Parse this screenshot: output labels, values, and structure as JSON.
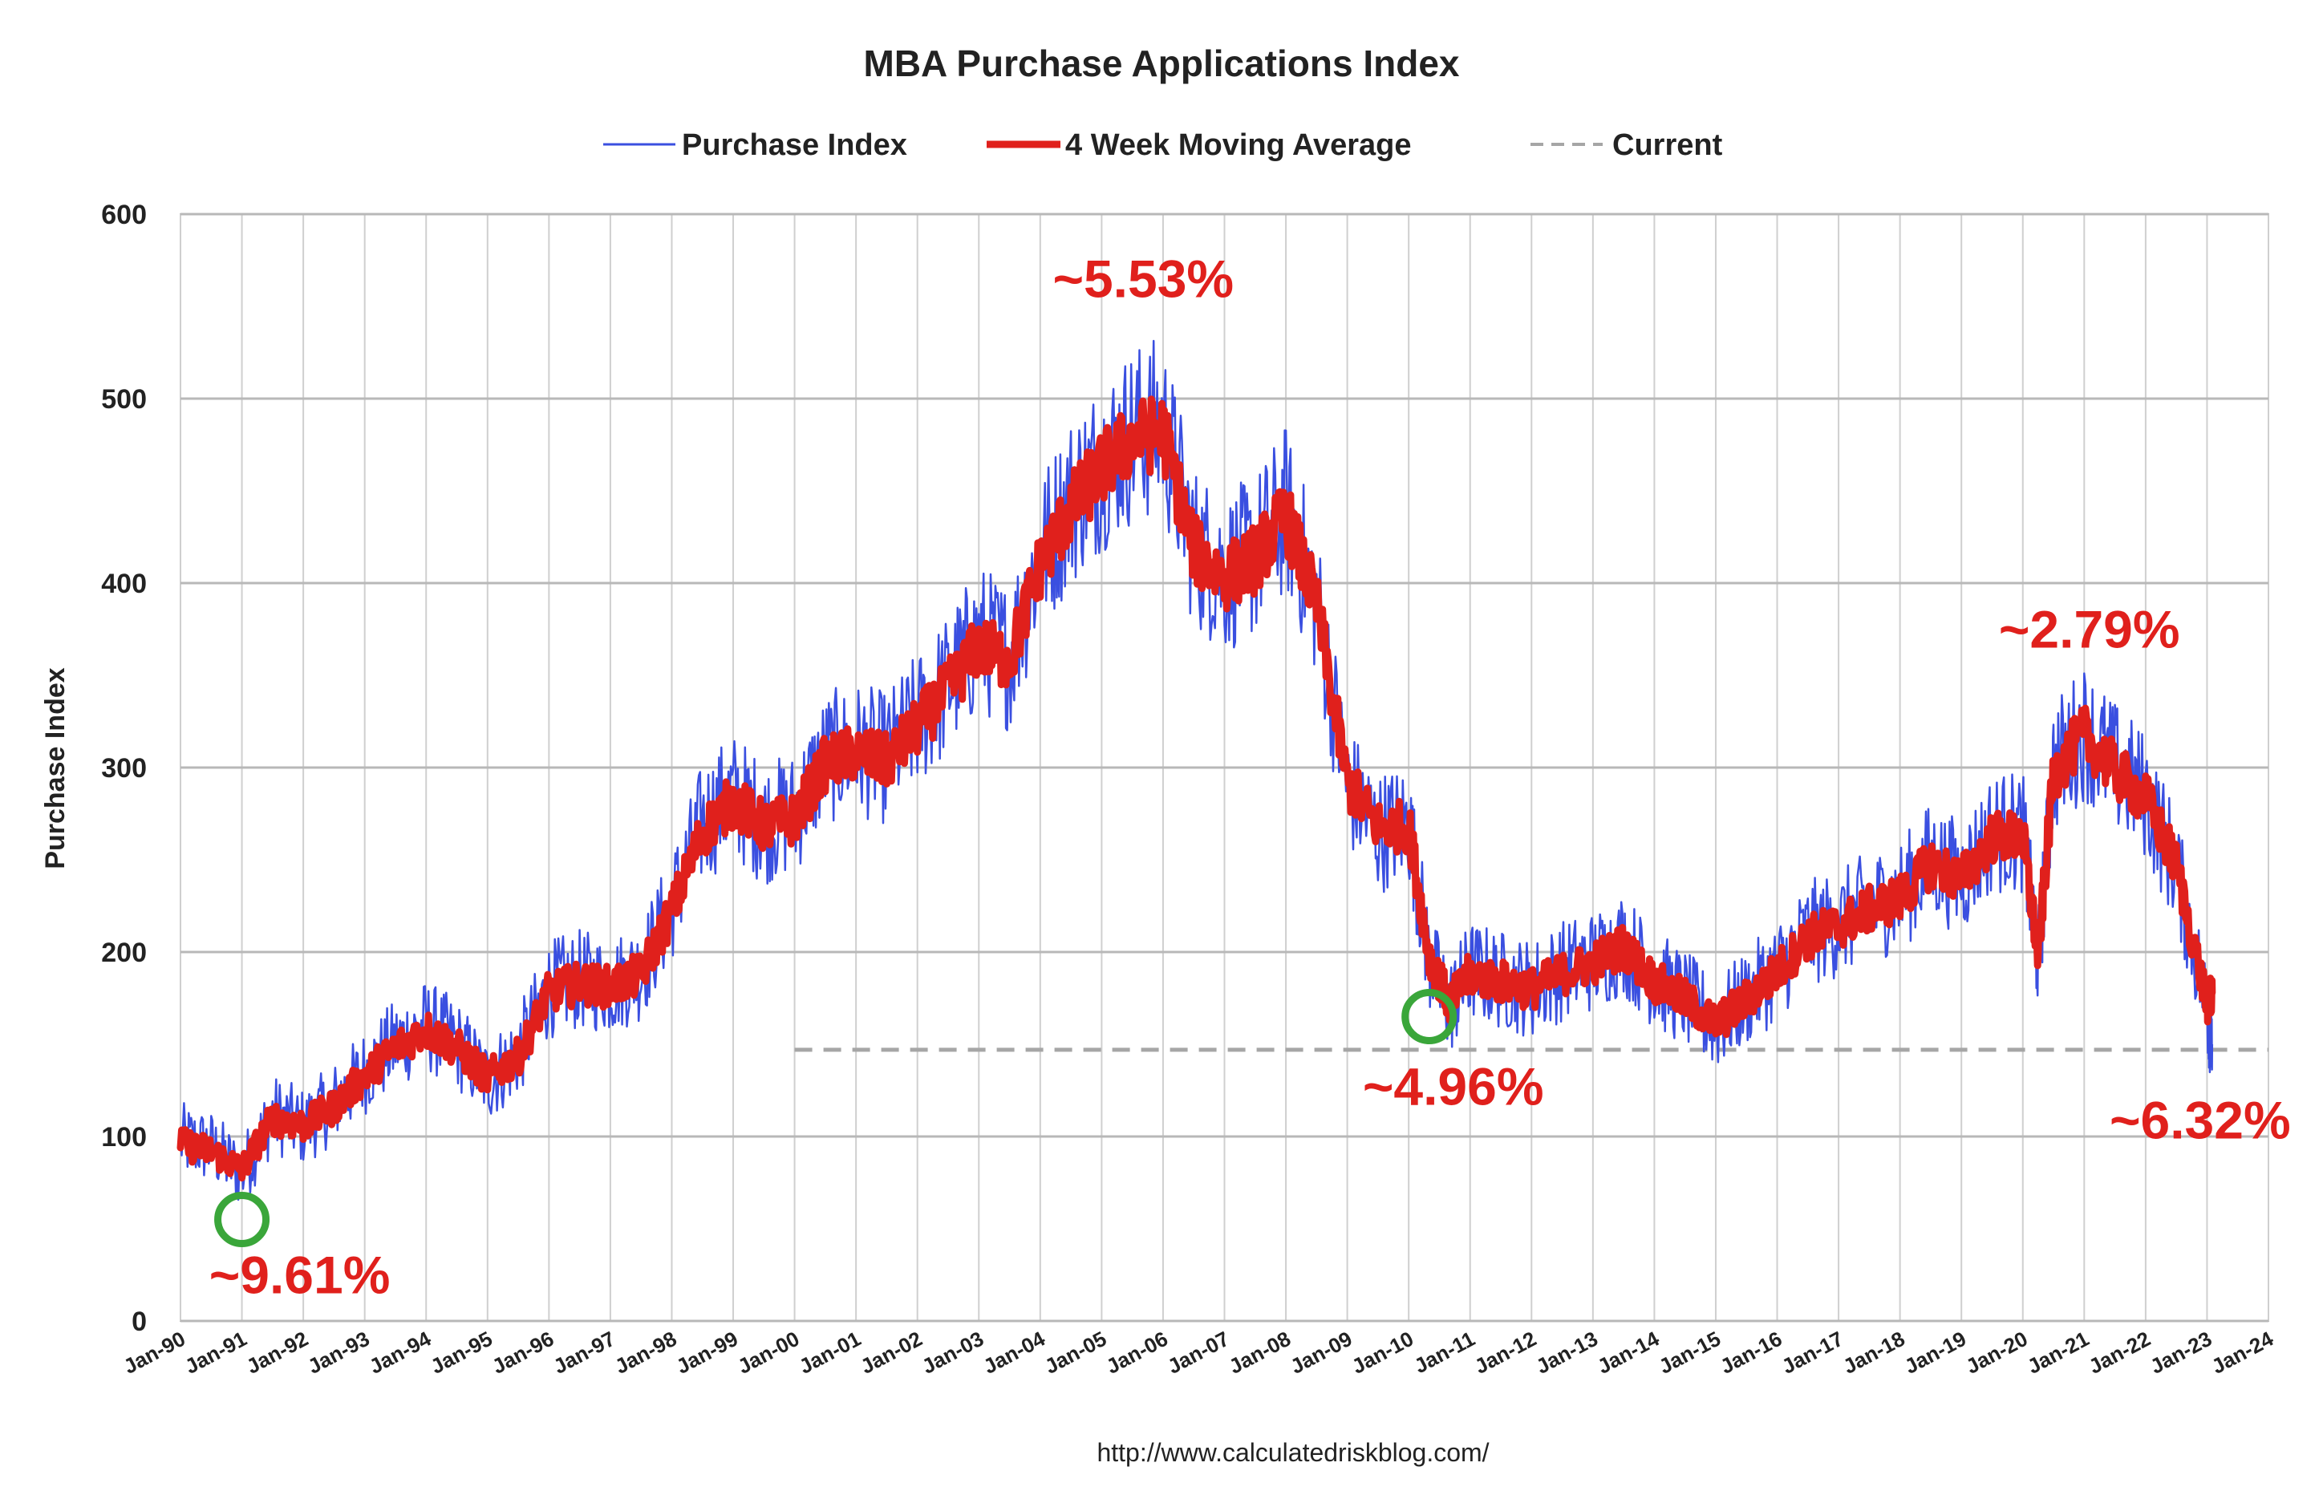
{
  "chart_data": {
    "type": "line",
    "title": "MBA Purchase Applications Index",
    "ylabel": "Purchase Index",
    "xlabel": "",
    "ylim": [
      0,
      600
    ],
    "xlim": [
      "1990-01",
      "2024-01"
    ],
    "y_ticks": [
      "0",
      "100",
      "200",
      "300",
      "400",
      "500",
      "600"
    ],
    "x_ticks": [
      "Jan-90",
      "Jan-91",
      "Jan-92",
      "Jan-93",
      "Jan-94",
      "Jan-95",
      "Jan-96",
      "Jan-97",
      "Jan-98",
      "Jan-99",
      "Jan-00",
      "Jan-01",
      "Jan-02",
      "Jan-03",
      "Jan-04",
      "Jan-05",
      "Jan-06",
      "Jan-07",
      "Jan-08",
      "Jan-09",
      "Jan-10",
      "Jan-11",
      "Jan-12",
      "Jan-13",
      "Jan-14",
      "Jan-15",
      "Jan-16",
      "Jan-17",
      "Jan-18",
      "Jan-19",
      "Jan-20",
      "Jan-21",
      "Jan-22",
      "Jan-23",
      "Jan-24"
    ],
    "grid": true,
    "legend_position": "top-center",
    "series": [
      {
        "name": "Purchase Index",
        "color": "#3a4fe0",
        "x": [
          "1990-01",
          "1990-07",
          "1991-01",
          "1991-07",
          "1992-01",
          "1992-07",
          "1993-01",
          "1993-07",
          "1994-01",
          "1994-07",
          "1995-01",
          "1995-07",
          "1996-01",
          "1996-07",
          "1997-01",
          "1997-07",
          "1998-01",
          "1998-07",
          "1999-01",
          "1999-07",
          "2000-01",
          "2000-07",
          "2001-01",
          "2001-07",
          "2002-01",
          "2002-07",
          "2003-01",
          "2003-07",
          "2004-01",
          "2004-07",
          "2005-01",
          "2005-07",
          "2006-01",
          "2006-07",
          "2007-01",
          "2007-07",
          "2008-01",
          "2008-07",
          "2009-01",
          "2009-07",
          "2010-01",
          "2010-05",
          "2010-09",
          "2011-01",
          "2011-07",
          "2012-01",
          "2012-07",
          "2013-01",
          "2013-07",
          "2014-01",
          "2014-07",
          "2015-01",
          "2015-07",
          "2016-01",
          "2016-07",
          "2017-01",
          "2017-07",
          "2018-01",
          "2018-07",
          "2019-01",
          "2019-07",
          "2020-01",
          "2020-04",
          "2020-07",
          "2021-01",
          "2021-07",
          "2022-01",
          "2022-07",
          "2023-01",
          "2023-02"
        ],
        "values": [
          98,
          94,
          80,
          112,
          105,
          118,
          135,
          150,
          160,
          150,
          130,
          145,
          180,
          185,
          182,
          190,
          225,
          270,
          285,
          270,
          275,
          305,
          310,
          305,
          325,
          345,
          370,
          360,
          415,
          445,
          465,
          480,
          485,
          420,
          405,
          415,
          440,
          390,
          290,
          265,
          270,
          195,
          170,
          190,
          185,
          180,
          190,
          195,
          205,
          185,
          175,
          160,
          175,
          190,
          210,
          215,
          225,
          230,
          250,
          240,
          265,
          265,
          195,
          300,
          320,
          300,
          285,
          245,
          170,
          150
        ]
      },
      {
        "name": "4 Week Moving Average",
        "color": "#e0201c",
        "x": [
          "1990-01",
          "1990-07",
          "1991-01",
          "1991-07",
          "1992-01",
          "1992-07",
          "1993-01",
          "1993-07",
          "1994-01",
          "1994-07",
          "1995-01",
          "1995-07",
          "1996-01",
          "1996-07",
          "1997-01",
          "1997-07",
          "1998-01",
          "1998-07",
          "1999-01",
          "1999-07",
          "2000-01",
          "2000-07",
          "2001-01",
          "2001-07",
          "2002-01",
          "2002-07",
          "2003-01",
          "2003-07",
          "2004-01",
          "2004-07",
          "2005-01",
          "2005-07",
          "2006-01",
          "2006-07",
          "2007-01",
          "2007-07",
          "2008-01",
          "2008-07",
          "2009-01",
          "2009-07",
          "2010-01",
          "2010-05",
          "2010-09",
          "2011-01",
          "2011-07",
          "2012-01",
          "2012-07",
          "2013-01",
          "2013-07",
          "2014-01",
          "2014-07",
          "2015-01",
          "2015-07",
          "2016-01",
          "2016-07",
          "2017-01",
          "2017-07",
          "2018-01",
          "2018-07",
          "2019-01",
          "2019-07",
          "2020-01",
          "2020-04",
          "2020-07",
          "2021-01",
          "2021-07",
          "2022-01",
          "2022-07",
          "2023-01",
          "2023-02"
        ],
        "values": [
          96,
          92,
          82,
          110,
          106,
          116,
          133,
          148,
          158,
          148,
          132,
          143,
          178,
          183,
          181,
          188,
          222,
          265,
          282,
          268,
          272,
          302,
          308,
          303,
          322,
          342,
          366,
          358,
          410,
          440,
          462,
          478,
          482,
          418,
          403,
          413,
          437,
          388,
          292,
          268,
          268,
          198,
          172,
          188,
          184,
          180,
          188,
          194,
          203,
          184,
          174,
          161,
          174,
          189,
          208,
          214,
          223,
          229,
          248,
          239,
          262,
          263,
          198,
          297,
          318,
          298,
          283,
          247,
          172,
          178
        ]
      },
      {
        "name": "Current",
        "color": "#a6a6a6",
        "x": [
          "2000-01",
          "2024-01"
        ],
        "values": [
          147,
          147
        ]
      }
    ],
    "annotations": [
      {
        "text": "~9.61%",
        "x": "1991-01",
        "y": 55
      },
      {
        "text": "~5.53%",
        "x": "2005-06",
        "y": 555
      },
      {
        "text": "~4.96%",
        "x": "2010-05",
        "y": 165
      },
      {
        "text": "~2.79%",
        "x": "2021-02",
        "y": 365
      },
      {
        "text": "~6.32%",
        "x": "2023-02",
        "y": 125
      }
    ],
    "markers": [
      {
        "x": "1991-01",
        "y": 55,
        "color": "#3aa63a"
      },
      {
        "x": "2010-05",
        "y": 165,
        "color": "#3aa63a"
      }
    ],
    "source": "http://www.calculatedriskblog.com/"
  }
}
